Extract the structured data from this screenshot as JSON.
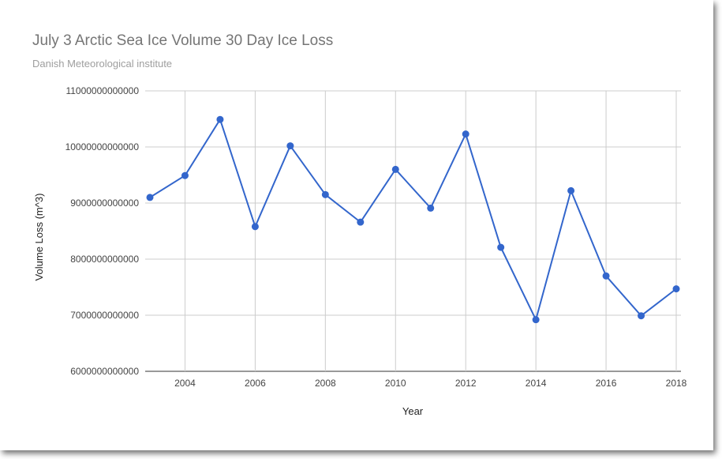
{
  "chart_data": {
    "type": "line",
    "title": "July 3 Arctic Sea Ice Volume 30 Day Ice Loss",
    "subtitle": "Danish Meteorological institute",
    "xlabel": "Year",
    "ylabel": "Volume Loss (m^3)",
    "xlim": [
      2003,
      2018
    ],
    "ylim": [
      6000000000000,
      11000000000000
    ],
    "x_ticks": [
      "2004",
      "2006",
      "2008",
      "2010",
      "2012",
      "2014",
      "2016",
      "2018"
    ],
    "y_ticks": [
      "6000000000000",
      "7000000000000",
      "8000000000000",
      "9000000000000",
      "10000000000000",
      "11000000000000"
    ],
    "grid": true,
    "legend": "none",
    "series": [
      {
        "color": "#3366cc",
        "x": [
          2003,
          2004,
          2005,
          2006,
          2007,
          2008,
          2009,
          2010,
          2011,
          2012,
          2013,
          2014,
          2015,
          2016,
          2017,
          2018
        ],
        "values": [
          9100000000000,
          9490000000000,
          10490000000000,
          8580000000000,
          10020000000000,
          9150000000000,
          8660000000000,
          9600000000000,
          8910000000000,
          10230000000000,
          8210000000000,
          6920000000000,
          9220000000000,
          7700000000000,
          6990000000000,
          7470000000000
        ]
      }
    ]
  }
}
